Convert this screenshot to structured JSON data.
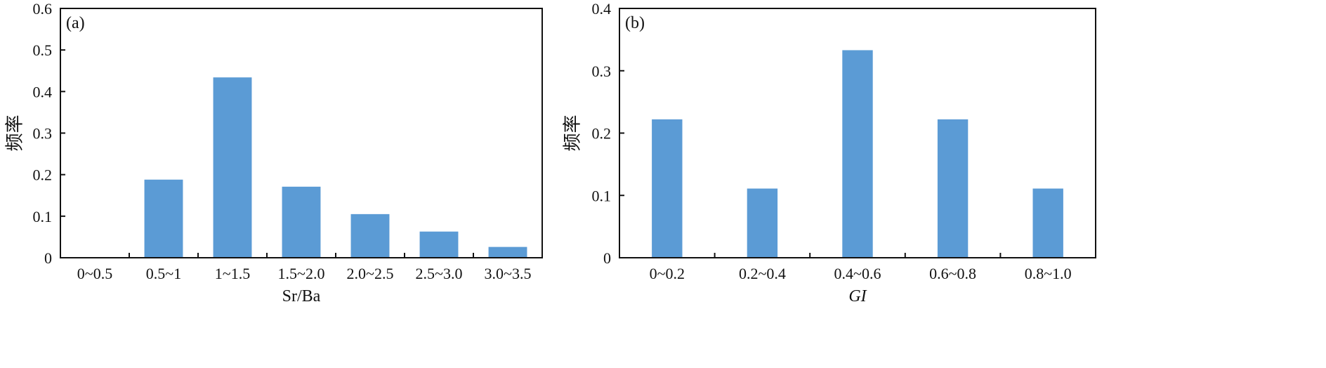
{
  "chart_data": [
    {
      "type": "bar",
      "panel_label": "(a)",
      "categories": [
        "0~0.5",
        "0.5~1",
        "1~1.5",
        "1.5~2.0",
        "2.0~2.5",
        "2.5~3.0",
        "3.0~3.5"
      ],
      "values": [
        0,
        0.188,
        0.434,
        0.171,
        0.105,
        0.063,
        0.026
      ],
      "xlabel": "Sr/Ba",
      "xlabel_italic": false,
      "ylabel": "频率",
      "ylim": [
        0,
        0.6
      ],
      "yticks": [
        "0",
        "0.1",
        "0.2",
        "0.3",
        "0.4",
        "0.5",
        "0.6"
      ],
      "bar_color": "#5b9bd5",
      "grid": false
    },
    {
      "type": "bar",
      "panel_label": "(b)",
      "categories": [
        "0~0.2",
        "0.2~0.4",
        "0.4~0.6",
        "0.6~0.8",
        "0.8~1.0"
      ],
      "values": [
        0.222,
        0.111,
        0.333,
        0.222,
        0.111
      ],
      "xlabel": "GI",
      "xlabel_italic": true,
      "ylabel": "频率",
      "ylim": [
        0,
        0.4
      ],
      "yticks": [
        "0",
        "0.1",
        "0.2",
        "0.3",
        "0.4"
      ],
      "bar_color": "#5b9bd5",
      "grid": false
    }
  ]
}
